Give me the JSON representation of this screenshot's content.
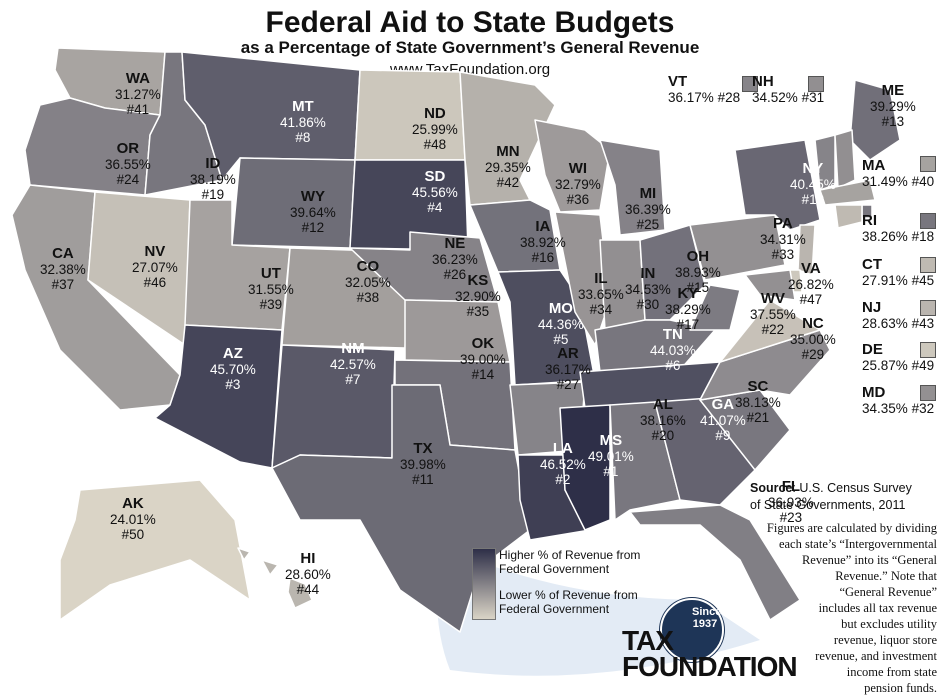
{
  "title": "Federal Aid to State Budgets",
  "subtitle": "as a Percentage of State Government’s General Revenue",
  "url": "www.TaxFoundation.org",
  "legend": {
    "high": [
      "Higher % of Revenue from",
      "Federal Government"
    ],
    "low": [
      "Lower % of Revenue from",
      "Federal Government"
    ]
  },
  "source": {
    "label": "Source",
    "text": ": U.S. Census Survey",
    "line2": "of State Governments, 2011"
  },
  "note": [
    "Figures are calculated by dividing",
    "each state’s “Intergovernmental",
    "Revenue” into its “General",
    "Revenue.” Note that",
    "“General Revenue”",
    "includes all tax revenue",
    "but excludes utility",
    "revenue, liquor store",
    "revenue, and investment",
    "income from state",
    "pension funds."
  ],
  "logo": {
    "since": [
      "Since",
      "1937"
    ],
    "line1": "TAX",
    "line2": "FOUNDATION"
  },
  "colors": {
    "high": "#2e2f48",
    "low": "#dad4c6",
    "water": "#e3ebf5"
  },
  "states": [
    {
      "abbr": "WA",
      "pct": "31.27%",
      "rank": "#41",
      "value": 31.27
    },
    {
      "abbr": "OR",
      "pct": "36.55%",
      "rank": "#24",
      "value": 36.55
    },
    {
      "abbr": "CA",
      "pct": "32.38%",
      "rank": "#37",
      "value": 32.38
    },
    {
      "abbr": "ID",
      "pct": "38.19%",
      "rank": "#19",
      "value": 38.19
    },
    {
      "abbr": "NV",
      "pct": "27.07%",
      "rank": "#46",
      "value": 27.07
    },
    {
      "abbr": "MT",
      "pct": "41.86%",
      "rank": "#8",
      "value": 41.86
    },
    {
      "abbr": "WY",
      "pct": "39.64%",
      "rank": "#12",
      "value": 39.64
    },
    {
      "abbr": "UT",
      "pct": "31.55%",
      "rank": "#39",
      "value": 31.55
    },
    {
      "abbr": "AZ",
      "pct": "45.70%",
      "rank": "#3",
      "value": 45.7
    },
    {
      "abbr": "CO",
      "pct": "32.05%",
      "rank": "#38",
      "value": 32.05
    },
    {
      "abbr": "NM",
      "pct": "42.57%",
      "rank": "#7",
      "value": 42.57
    },
    {
      "abbr": "ND",
      "pct": "25.99%",
      "rank": "#48",
      "value": 25.99
    },
    {
      "abbr": "SD",
      "pct": "45.56%",
      "rank": "#4",
      "value": 45.56
    },
    {
      "abbr": "NE",
      "pct": "36.23%",
      "rank": "#26",
      "value": 36.23
    },
    {
      "abbr": "KS",
      "pct": "32.90%",
      "rank": "#35",
      "value": 32.9
    },
    {
      "abbr": "OK",
      "pct": "39.00%",
      "rank": "#14",
      "value": 39.0
    },
    {
      "abbr": "TX",
      "pct": "39.98%",
      "rank": "#11",
      "value": 39.98
    },
    {
      "abbr": "MN",
      "pct": "29.35%",
      "rank": "#42",
      "value": 29.35
    },
    {
      "abbr": "IA",
      "pct": "38.92%",
      "rank": "#16",
      "value": 38.92
    },
    {
      "abbr": "MO",
      "pct": "44.36%",
      "rank": "#5",
      "value": 44.36
    },
    {
      "abbr": "AR",
      "pct": "36.17%",
      "rank": "#27",
      "value": 36.17
    },
    {
      "abbr": "LA",
      "pct": "46.52%",
      "rank": "#2",
      "value": 46.52
    },
    {
      "abbr": "WI",
      "pct": "32.79%",
      "rank": "#36",
      "value": 32.79
    },
    {
      "abbr": "IL",
      "pct": "33.65%",
      "rank": "#34",
      "value": 33.65
    },
    {
      "abbr": "MI",
      "pct": "36.39%",
      "rank": "#25",
      "value": 36.39
    },
    {
      "abbr": "IN",
      "pct": "34.53%",
      "rank": "#30",
      "value": 34.53
    },
    {
      "abbr": "OH",
      "pct": "38.93%",
      "rank": "#15",
      "value": 38.93
    },
    {
      "abbr": "KY",
      "pct": "38.29%",
      "rank": "#17",
      "value": 38.29
    },
    {
      "abbr": "TN",
      "pct": "44.03%",
      "rank": "#6",
      "value": 44.03
    },
    {
      "abbr": "MS",
      "pct": "49.01%",
      "rank": "#1",
      "value": 49.01
    },
    {
      "abbr": "AL",
      "pct": "38.16%",
      "rank": "#20",
      "value": 38.16
    },
    {
      "abbr": "GA",
      "pct": "41.07%",
      "rank": "#9",
      "value": 41.07
    },
    {
      "abbr": "FL",
      "pct": "36.93%",
      "rank": "#23",
      "value": 36.93
    },
    {
      "abbr": "SC",
      "pct": "38.13%",
      "rank": "#21",
      "value": 38.13
    },
    {
      "abbr": "NC",
      "pct": "35.00%",
      "rank": "#29",
      "value": 35.0
    },
    {
      "abbr": "VA",
      "pct": "26.82%",
      "rank": "#47",
      "value": 26.82
    },
    {
      "abbr": "WV",
      "pct": "37.55%",
      "rank": "#22",
      "value": 37.55
    },
    {
      "abbr": "PA",
      "pct": "34.31%",
      "rank": "#33",
      "value": 34.31
    },
    {
      "abbr": "NY",
      "pct": "40.45%",
      "rank": "#10",
      "value": 40.45
    },
    {
      "abbr": "ME",
      "pct": "39.29%",
      "rank": "#13",
      "value": 39.29
    },
    {
      "abbr": "AK",
      "pct": "24.01%",
      "rank": "#50",
      "value": 24.01
    },
    {
      "abbr": "HI",
      "pct": "28.60%",
      "rank": "#44",
      "value": 28.6
    },
    {
      "abbr": "VT",
      "pct": "36.17%",
      "rank": "#28",
      "value": 36.17
    },
    {
      "abbr": "NH",
      "pct": "34.52%",
      "rank": "#31",
      "value": 34.52
    },
    {
      "abbr": "MA",
      "pct": "31.49%",
      "rank": "#40",
      "value": 31.49
    },
    {
      "abbr": "RI",
      "pct": "38.26%",
      "rank": "#18",
      "value": 38.26
    },
    {
      "abbr": "CT",
      "pct": "27.91%",
      "rank": "#45",
      "value": 27.91
    },
    {
      "abbr": "NJ",
      "pct": "28.63%",
      "rank": "#43",
      "value": 28.63
    },
    {
      "abbr": "DE",
      "pct": "25.87%",
      "rank": "#49",
      "value": 25.87
    },
    {
      "abbr": "MD",
      "pct": "34.35%",
      "rank": "#32",
      "value": 34.35
    }
  ]
}
